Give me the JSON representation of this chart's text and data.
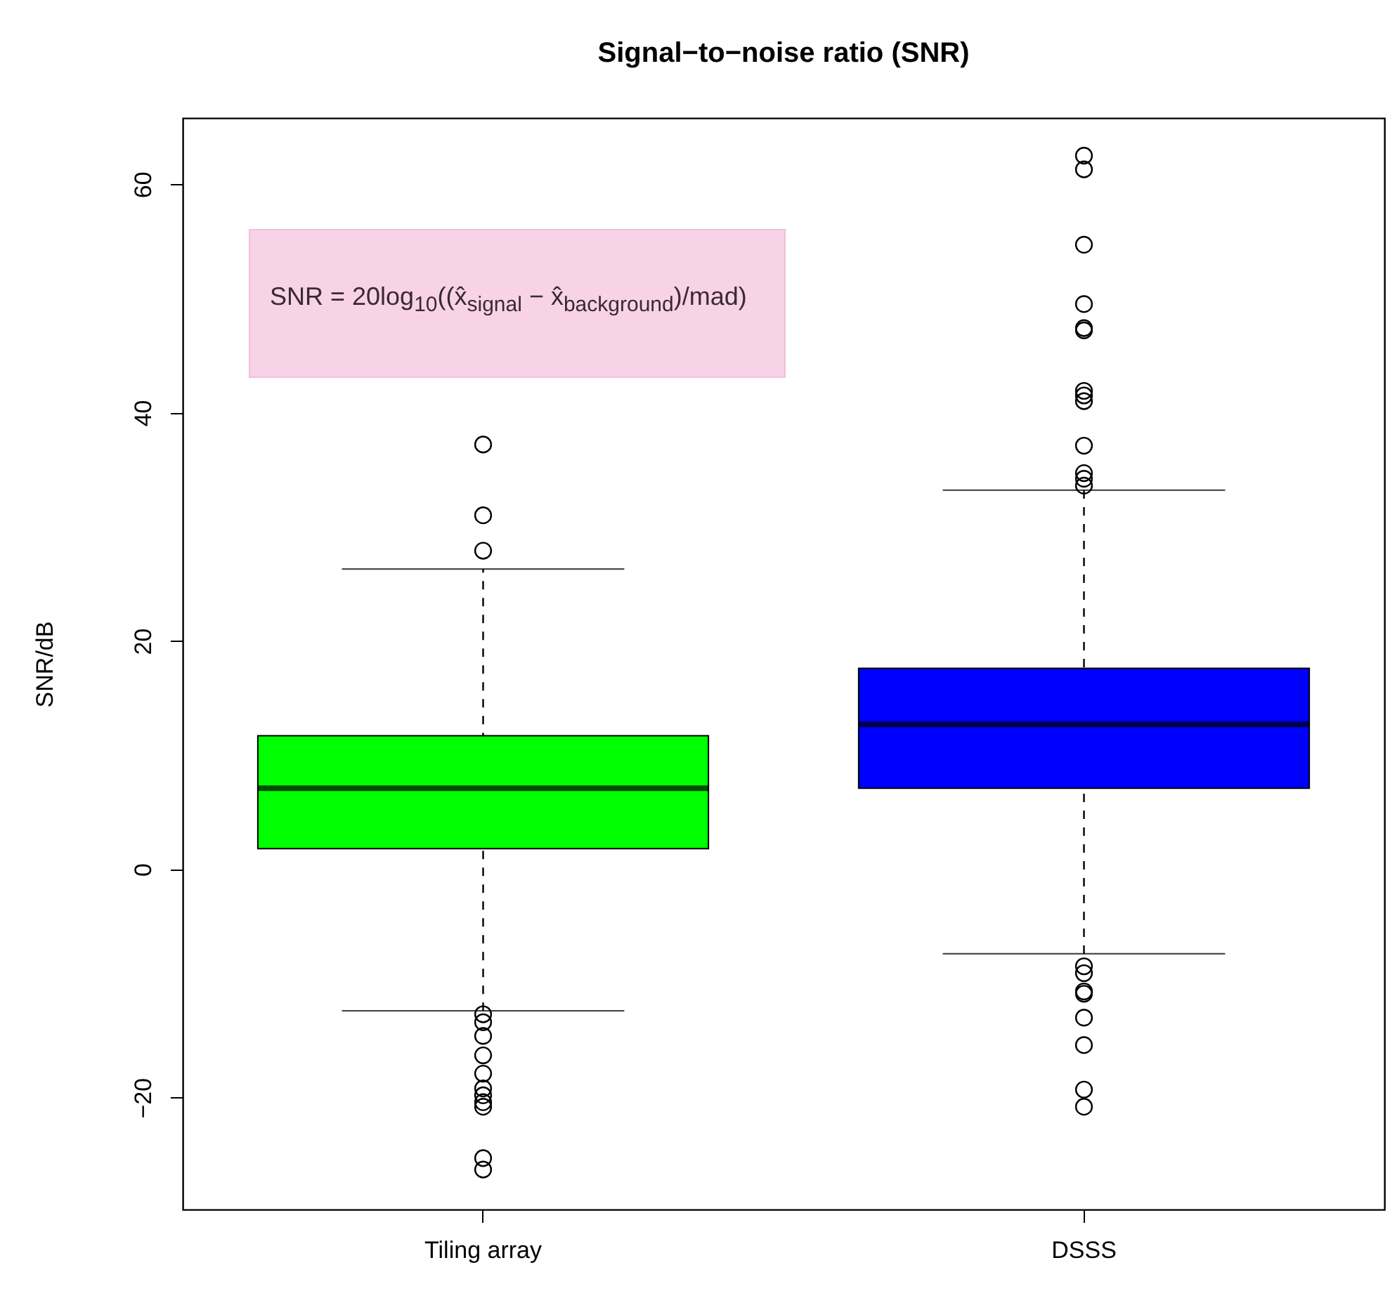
{
  "chart_data": {
    "type": "box",
    "title": "Signal−to−noise ratio (SNR)",
    "ylabel": "SNR/dB",
    "categories": [
      "Tiling array",
      "DSSS"
    ],
    "colors": [
      "#00ff00",
      "#0000ff"
    ],
    "boxes": [
      {
        "low": -12.4,
        "q1": 1.8,
        "median": 7.1,
        "q3": 11.7,
        "high": 26.3,
        "outliers": [
          37.2,
          31.0,
          27.9,
          -12.7,
          -13.4,
          -14.6,
          -16.3,
          -17.9,
          -19.2,
          -19.8,
          -20.4,
          -20.8,
          -25.3,
          -26.3
        ]
      },
      {
        "low": -7.4,
        "q1": 7.1,
        "median": 12.7,
        "q3": 17.6,
        "high": 33.2,
        "outliers": [
          62.5,
          61.3,
          54.7,
          49.5,
          47.4,
          47.2,
          41.9,
          41.5,
          41.0,
          37.1,
          34.7,
          34.2,
          33.6,
          -8.5,
          -9.1,
          -10.7,
          -10.9,
          -13.0,
          -15.4,
          -19.3,
          -20.8
        ]
      }
    ],
    "ylim": [
      -29.8,
      65.8
    ],
    "yticks": [
      -20,
      0,
      20,
      40,
      60
    ],
    "annotations": [
      "SNR = 20log$_{10}$((x̂$_{signal}$ − x̂$_{background}$)/mad)"
    ]
  }
}
